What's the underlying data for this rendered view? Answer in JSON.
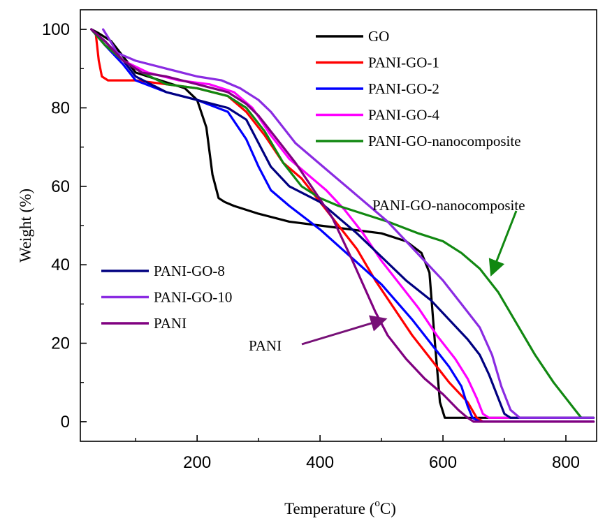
{
  "chart_data": {
    "type": "line",
    "title": "",
    "xlabel": "Temperature (",
    "xlabel_sup": "o",
    "xlabel_suffix": "C)",
    "ylabel": "Weight (%)",
    "xlim": [
      10,
      850
    ],
    "ylim": [
      -5,
      105
    ],
    "x_ticks": [
      200,
      400,
      600,
      800
    ],
    "y_ticks": [
      0,
      20,
      40,
      60,
      80,
      100
    ],
    "grid": false,
    "legend_top": [
      "GO",
      "PANI-GO-1",
      "PANI-GO-2",
      "PANI-GO-4",
      "PANI-GO-nanocomposite"
    ],
    "legend_bottom": [
      "PANI-GO-8",
      "PANI-GO-10",
      "PANI"
    ],
    "annotations": [
      {
        "text": "PANI-GO-nanocomposite",
        "points_to": [
          680,
          38
        ],
        "color": "#118811"
      },
      {
        "text": "PANI",
        "points_to": [
          503,
          26
        ],
        "color": "#771177"
      }
    ],
    "series": [
      {
        "name": "GO",
        "color": "#000000",
        "points": [
          [
            28,
            100
          ],
          [
            40,
            99
          ],
          [
            60,
            97
          ],
          [
            80,
            93
          ],
          [
            100,
            89
          ],
          [
            140,
            87
          ],
          [
            180,
            85
          ],
          [
            200,
            82
          ],
          [
            215,
            75
          ],
          [
            225,
            63
          ],
          [
            235,
            57
          ],
          [
            245,
            56
          ],
          [
            260,
            55
          ],
          [
            300,
            53
          ],
          [
            350,
            51
          ],
          [
            400,
            50
          ],
          [
            450,
            49
          ],
          [
            500,
            48
          ],
          [
            540,
            46
          ],
          [
            565,
            43
          ],
          [
            578,
            38
          ],
          [
            587,
            20
          ],
          [
            595,
            5
          ],
          [
            603,
            1
          ],
          [
            620,
            1
          ],
          [
            700,
            1
          ],
          [
            845,
            1
          ]
        ]
      },
      {
        "name": "PANI-GO-1",
        "color": "#ff0000",
        "points": [
          [
            28,
            100
          ],
          [
            35,
            99
          ],
          [
            40,
            92
          ],
          [
            45,
            88
          ],
          [
            55,
            87
          ],
          [
            100,
            87
          ],
          [
            150,
            86
          ],
          [
            200,
            85
          ],
          [
            250,
            83
          ],
          [
            280,
            79
          ],
          [
            310,
            73
          ],
          [
            340,
            66
          ],
          [
            370,
            62
          ],
          [
            400,
            56
          ],
          [
            430,
            50
          ],
          [
            460,
            44
          ],
          [
            490,
            36
          ],
          [
            520,
            29
          ],
          [
            550,
            22
          ],
          [
            580,
            16
          ],
          [
            610,
            10
          ],
          [
            640,
            5
          ],
          [
            655,
            1
          ],
          [
            665,
            0
          ],
          [
            845,
            0
          ]
        ]
      },
      {
        "name": "PANI-GO-2",
        "color": "#0000ff",
        "points": [
          [
            28,
            100
          ],
          [
            50,
            96
          ],
          [
            80,
            91
          ],
          [
            100,
            87
          ],
          [
            150,
            84
          ],
          [
            200,
            82
          ],
          [
            250,
            79
          ],
          [
            280,
            72
          ],
          [
            300,
            65
          ],
          [
            320,
            59
          ],
          [
            350,
            55
          ],
          [
            400,
            49
          ],
          [
            450,
            42
          ],
          [
            500,
            35
          ],
          [
            550,
            26
          ],
          [
            580,
            20
          ],
          [
            610,
            14
          ],
          [
            630,
            9
          ],
          [
            640,
            4
          ],
          [
            648,
            1
          ],
          [
            660,
            0
          ],
          [
            845,
            0
          ]
        ]
      },
      {
        "name": "PANI-GO-4",
        "color": "#ff00ff",
        "points": [
          [
            28,
            100
          ],
          [
            50,
            96
          ],
          [
            80,
            92
          ],
          [
            120,
            89
          ],
          [
            170,
            87
          ],
          [
            220,
            86
          ],
          [
            260,
            84
          ],
          [
            290,
            80
          ],
          [
            320,
            73
          ],
          [
            350,
            67
          ],
          [
            380,
            63
          ],
          [
            410,
            59
          ],
          [
            440,
            54
          ],
          [
            470,
            48
          ],
          [
            500,
            41
          ],
          [
            530,
            35
          ],
          [
            560,
            29
          ],
          [
            590,
            22
          ],
          [
            620,
            16
          ],
          [
            640,
            11
          ],
          [
            655,
            6
          ],
          [
            665,
            2
          ],
          [
            675,
            1
          ],
          [
            845,
            1
          ]
        ]
      },
      {
        "name": "PANI-GO-nanocomposite",
        "color": "#118811",
        "points": [
          [
            28,
            100
          ],
          [
            50,
            96
          ],
          [
            80,
            92
          ],
          [
            110,
            89
          ],
          [
            150,
            86
          ],
          [
            200,
            85
          ],
          [
            250,
            83
          ],
          [
            280,
            80
          ],
          [
            310,
            74
          ],
          [
            340,
            66
          ],
          [
            370,
            60
          ],
          [
            400,
            57
          ],
          [
            430,
            55
          ],
          [
            470,
            53
          ],
          [
            510,
            51
          ],
          [
            560,
            48
          ],
          [
            600,
            46
          ],
          [
            630,
            43
          ],
          [
            660,
            39
          ],
          [
            690,
            33
          ],
          [
            720,
            25
          ],
          [
            750,
            17
          ],
          [
            780,
            10
          ],
          [
            800,
            6
          ],
          [
            815,
            3
          ],
          [
            825,
            1
          ],
          [
            845,
            1
          ]
        ]
      },
      {
        "name": "PANI-GO-8",
        "color": "#000080",
        "points": [
          [
            28,
            100
          ],
          [
            50,
            97
          ],
          [
            80,
            92
          ],
          [
            100,
            88
          ],
          [
            150,
            84
          ],
          [
            200,
            82
          ],
          [
            250,
            80
          ],
          [
            280,
            77
          ],
          [
            300,
            71
          ],
          [
            320,
            65
          ],
          [
            350,
            60
          ],
          [
            400,
            56
          ],
          [
            430,
            52
          ],
          [
            460,
            48
          ],
          [
            500,
            42
          ],
          [
            540,
            36
          ],
          [
            580,
            31
          ],
          [
            610,
            26
          ],
          [
            640,
            21
          ],
          [
            660,
            17
          ],
          [
            675,
            12
          ],
          [
            690,
            6
          ],
          [
            700,
            2
          ],
          [
            710,
            1
          ],
          [
            845,
            1
          ]
        ]
      },
      {
        "name": "PANI-GO-10",
        "color": "#8a2be2",
        "points": [
          [
            47,
            100
          ],
          [
            55,
            98
          ],
          [
            70,
            94
          ],
          [
            100,
            92
          ],
          [
            150,
            90
          ],
          [
            200,
            88
          ],
          [
            240,
            87
          ],
          [
            270,
            85
          ],
          [
            300,
            82
          ],
          [
            320,
            79
          ],
          [
            340,
            75
          ],
          [
            360,
            71
          ],
          [
            390,
            67
          ],
          [
            420,
            63
          ],
          [
            450,
            59
          ],
          [
            480,
            55
          ],
          [
            510,
            51
          ],
          [
            540,
            46
          ],
          [
            570,
            41
          ],
          [
            600,
            36
          ],
          [
            630,
            30
          ],
          [
            660,
            24
          ],
          [
            680,
            17
          ],
          [
            695,
            9
          ],
          [
            710,
            3
          ],
          [
            725,
            1
          ],
          [
            845,
            1
          ]
        ]
      },
      {
        "name": "PANI",
        "color": "#800080",
        "points": [
          [
            28,
            100
          ],
          [
            50,
            97
          ],
          [
            80,
            92
          ],
          [
            110,
            89
          ],
          [
            150,
            88
          ],
          [
            200,
            86
          ],
          [
            250,
            84
          ],
          [
            280,
            81
          ],
          [
            300,
            78
          ],
          [
            330,
            72
          ],
          [
            360,
            66
          ],
          [
            390,
            59
          ],
          [
            420,
            52
          ],
          [
            450,
            42
          ],
          [
            470,
            35
          ],
          [
            490,
            28
          ],
          [
            510,
            22
          ],
          [
            540,
            16
          ],
          [
            570,
            11
          ],
          [
            600,
            7
          ],
          [
            625,
            3
          ],
          [
            640,
            1
          ],
          [
            650,
            0
          ],
          [
            845,
            0
          ]
        ]
      }
    ]
  }
}
